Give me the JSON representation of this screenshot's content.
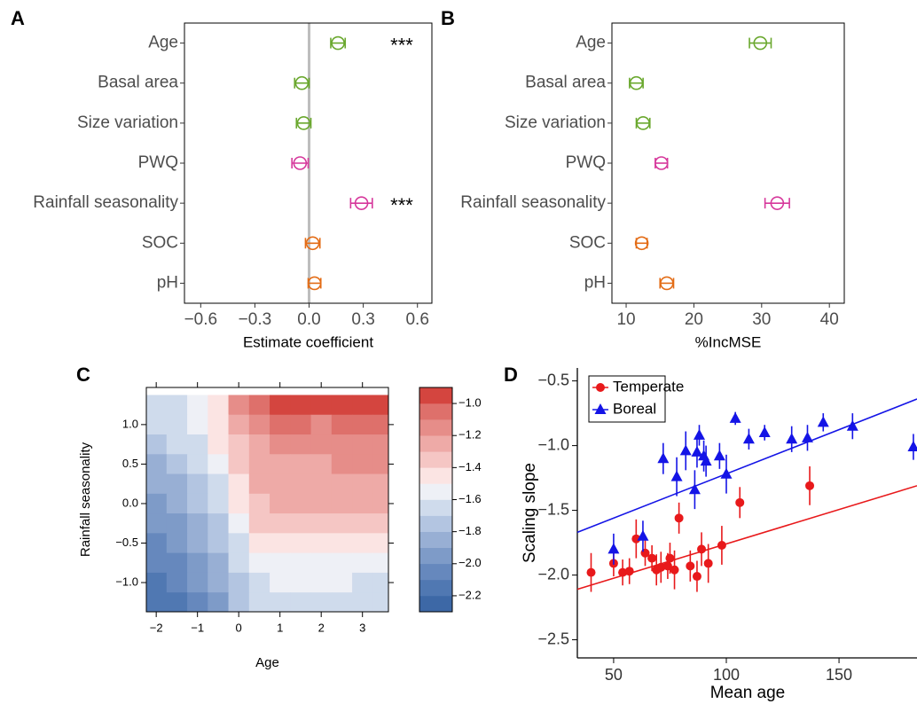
{
  "chart_data": [
    {
      "type": "dotplot",
      "label": "A",
      "xlabel": "Estimate coefficient",
      "categories": [
        "Age",
        "Basal area",
        "Size variation",
        "PWQ",
        "Rainfall seasonality",
        "SOC",
        "pH"
      ],
      "values": [
        0.16,
        -0.04,
        -0.03,
        -0.05,
        0.29,
        0.02,
        0.03
      ],
      "errors": [
        0.04,
        0.04,
        0.04,
        0.045,
        0.06,
        0.04,
        0.035
      ],
      "colors": [
        "#6aa82e",
        "#6aa82e",
        "#6aa82e",
        "#d6379b",
        "#d6379b",
        "#e36c16",
        "#e36c16"
      ],
      "annotations": [
        "***",
        null,
        null,
        null,
        "***",
        null,
        null
      ],
      "ref_line": 0,
      "ref_color": "#bdbdbd",
      "xlim": [
        -0.69,
        0.68
      ],
      "xticks": [
        {
          "value": -0.6,
          "label": "−0.6"
        },
        {
          "value": -0.3,
          "label": "−0.3"
        },
        {
          "value": 0,
          "label": "0.0"
        },
        0.3,
        0.6
      ]
    },
    {
      "type": "dotplot",
      "label": "B",
      "xlabel": "%IncMSE",
      "categories": [
        "Age",
        "Basal area",
        "Size variation",
        "PWQ",
        "Rainfall seasonality",
        "SOC",
        "pH"
      ],
      "values": [
        29.8,
        11.5,
        12.5,
        15.2,
        32.3,
        12.3,
        16.0
      ],
      "errors": [
        1.6,
        1.0,
        1.0,
        0.9,
        1.8,
        0.8,
        1.0
      ],
      "colors": [
        "#6aa82e",
        "#6aa82e",
        "#6aa82e",
        "#d6379b",
        "#d6379b",
        "#e36c16",
        "#e36c16"
      ],
      "xlim": [
        7.9,
        42.2
      ],
      "xticks": [
        10,
        20,
        30,
        40
      ]
    },
    {
      "type": "contour",
      "label": "C",
      "xlabel": "Age",
      "ylabel": "Rainfall seasonality",
      "x": [
        -2,
        -1.5,
        -1,
        -0.5,
        0,
        0.5,
        1,
        1.5,
        2,
        2.5,
        3,
        3.5
      ],
      "y": [
        1.25,
        1.0,
        0.75,
        0.5,
        0.25,
        0,
        -0.25,
        -0.5,
        -0.75,
        -1.0,
        -1.25
      ],
      "z": [
        [
          -1.7,
          -1.7,
          -1.6,
          -1.5,
          -1.2,
          -1.1,
          -1.0,
          -1.0,
          -1.0,
          -1.0,
          -1.0,
          -1.0
        ],
        [
          -1.7,
          -1.7,
          -1.6,
          -1.5,
          -1.3,
          -1.2,
          -1.1,
          -1.1,
          -1.2,
          -1.1,
          -1.1,
          -1.1
        ],
        [
          -1.8,
          -1.7,
          -1.7,
          -1.5,
          -1.4,
          -1.3,
          -1.2,
          -1.2,
          -1.2,
          -1.2,
          -1.2,
          -1.2
        ],
        [
          -1.9,
          -1.8,
          -1.7,
          -1.6,
          -1.4,
          -1.3,
          -1.3,
          -1.3,
          -1.3,
          -1.2,
          -1.2,
          -1.2
        ],
        [
          -1.9,
          -1.9,
          -1.8,
          -1.7,
          -1.5,
          -1.3,
          -1.3,
          -1.3,
          -1.3,
          -1.3,
          -1.3,
          -1.3
        ],
        [
          -2.0,
          -1.9,
          -1.8,
          -1.7,
          -1.5,
          -1.4,
          -1.3,
          -1.3,
          -1.3,
          -1.3,
          -1.3,
          -1.3
        ],
        [
          -2.0,
          -2.0,
          -1.9,
          -1.8,
          -1.6,
          -1.4,
          -1.4,
          -1.4,
          -1.4,
          -1.4,
          -1.4,
          -1.4
        ],
        [
          -2.1,
          -2.0,
          -1.9,
          -1.8,
          -1.7,
          -1.5,
          -1.5,
          -1.5,
          -1.5,
          -1.5,
          -1.5,
          -1.5
        ],
        [
          -2.1,
          -2.1,
          -2.0,
          -1.9,
          -1.7,
          -1.6,
          -1.6,
          -1.6,
          -1.6,
          -1.6,
          -1.6,
          -1.6
        ],
        [
          -2.2,
          -2.1,
          -2.0,
          -1.9,
          -1.8,
          -1.7,
          -1.6,
          -1.6,
          -1.6,
          -1.6,
          -1.7,
          -1.7
        ],
        [
          -2.2,
          -2.2,
          -2.1,
          -2.0,
          -1.8,
          -1.7,
          -1.7,
          -1.7,
          -1.7,
          -1.7,
          -1.7,
          -1.7
        ]
      ],
      "levels": [
        -2.3,
        -2.2,
        -2.1,
        -2.0,
        -1.9,
        -1.8,
        -1.7,
        -1.6,
        -1.5,
        -1.4,
        -1.3,
        -1.2,
        -1.1,
        -1.0,
        -0.9
      ],
      "colors": [
        "#3d68a6",
        "#5078b2",
        "#6688bd",
        "#7e9bc8",
        "#98afd4",
        "#b3c5e1",
        "#cfdbec",
        "#eef0f6",
        "#fbe4e3",
        "#f5c6c4",
        "#eeaaa7",
        "#e68d89",
        "#de706b",
        "#d4453f"
      ],
      "xlim": [
        -2.24,
        3.63
      ],
      "ylim": [
        -1.37,
        1.47
      ],
      "xticks": [
        {
          "value": -2,
          "label": "−2"
        },
        {
          "value": -1,
          "label": "−1"
        },
        0,
        1,
        2,
        3
      ],
      "yticks": [
        {
          "value": -1,
          "label": "−1.0"
        },
        {
          "value": -0.5,
          "label": "−0.5"
        },
        {
          "value": 0,
          "label": "0.0"
        },
        0.5,
        {
          "value": 1,
          "label": "1.0"
        }
      ],
      "colorbar_ticks": [
        {
          "value": -2.2,
          "label": "−2.2"
        },
        {
          "value": -2.0,
          "label": "−2.0"
        },
        {
          "value": -1.8,
          "label": "−1.8"
        },
        {
          "value": -1.6,
          "label": "−1.6"
        },
        {
          "value": -1.4,
          "label": "−1.4"
        },
        {
          "value": -1.2,
          "label": "−1.2"
        },
        {
          "value": -1.0,
          "label": "−1.0"
        }
      ]
    },
    {
      "type": "scatter",
      "label": "D",
      "xlabel": "Mean age",
      "ylabel": "Scaling slope",
      "xlim": [
        33.9,
        184.6
      ],
      "ylim": [
        -2.64,
        -0.4
      ],
      "xticks": [
        50,
        100,
        150
      ],
      "yticks": [
        {
          "value": -2.5,
          "label": "−2.5"
        },
        {
          "value": -2.0,
          "label": "−2.0"
        },
        {
          "value": -1.5,
          "label": "−1.5"
        },
        {
          "value": -1.0,
          "label": "−1.0"
        },
        {
          "value": -0.5,
          "label": "−0.5"
        }
      ],
      "legend": "top-left",
      "series": [
        {
          "name": "Temperate",
          "color": "#e8191b",
          "marker": "circle",
          "x": [
            40,
            50,
            54,
            57,
            60,
            64,
            67,
            69,
            71,
            74,
            75,
            77,
            79,
            84,
            87,
            89,
            92,
            98,
            106,
            137
          ],
          "values": [
            -1.98,
            -1.91,
            -1.98,
            -1.97,
            -1.72,
            -1.83,
            -1.87,
            -1.96,
            -1.94,
            -1.93,
            -1.87,
            -1.96,
            -1.56,
            -1.93,
            -2.01,
            -1.8,
            -1.91,
            -1.77,
            -1.44,
            -1.31
          ],
          "errors": [
            0.15,
            0.1,
            0.1,
            0.1,
            0.15,
            0.1,
            0.1,
            0.12,
            0.12,
            0.1,
            0.12,
            0.15,
            0.12,
            0.12,
            0.12,
            0.13,
            0.15,
            0.15,
            0.12,
            0.15
          ],
          "fit": {
            "x": [
              33.9,
              184.6
            ],
            "y": [
              -2.11,
              -1.31
            ]
          }
        },
        {
          "name": "Boreal",
          "color": "#1414e6",
          "marker": "triangle",
          "x": [
            50,
            63,
            72,
            78,
            82,
            86,
            87,
            88,
            90,
            91,
            97,
            100,
            104,
            110,
            117,
            129,
            136,
            143,
            156,
            183
          ],
          "values": [
            -1.8,
            -1.7,
            -1.1,
            -1.24,
            -1.04,
            -1.34,
            -1.05,
            -0.92,
            -1.08,
            -1.12,
            -1.08,
            -1.22,
            -0.79,
            -0.95,
            -0.9,
            -0.95,
            -0.94,
            -0.82,
            -0.85,
            -1.01
          ],
          "errors": [
            0.12,
            0.12,
            0.12,
            0.15,
            0.15,
            0.15,
            0.12,
            0.08,
            0.12,
            0.12,
            0.1,
            0.15,
            0.05,
            0.08,
            0.06,
            0.1,
            0.1,
            0.07,
            0.1,
            0.1
          ],
          "fit": {
            "x": [
              33.9,
              184.6
            ],
            "y": [
              -1.67,
              -0.64
            ]
          }
        }
      ]
    }
  ]
}
